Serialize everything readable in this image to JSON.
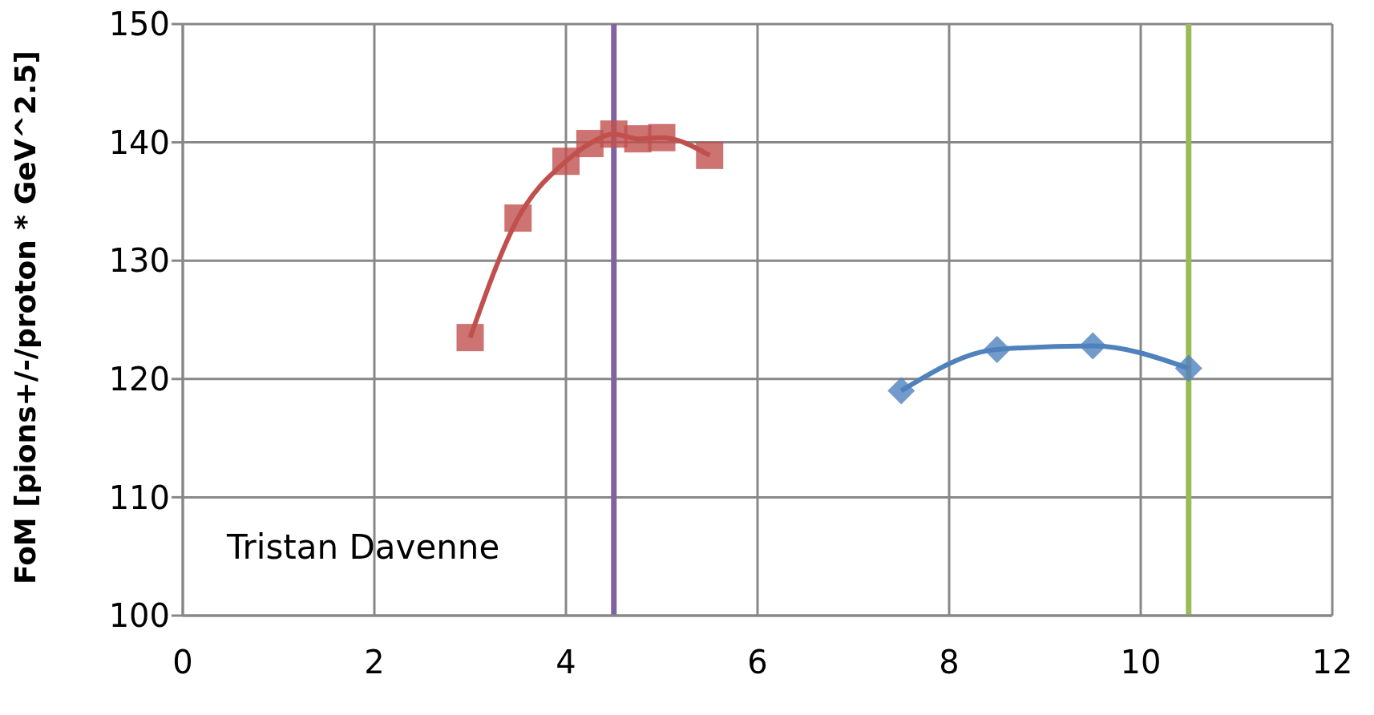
{
  "chart_data": {
    "type": "line",
    "ylabel": "FoM [pions+/-/proton  * GeV^2.5]",
    "xlim": [
      0,
      12
    ],
    "xticks": [
      0,
      2,
      4,
      6,
      8,
      10,
      12
    ],
    "ylim": [
      100,
      150
    ],
    "yticks": [
      100,
      110,
      120,
      130,
      140,
      150
    ],
    "grid": true,
    "legend": false,
    "marker": "square",
    "series": [
      {
        "color": "#c0504d",
        "x": [
          3,
          3.5,
          4,
          4.25,
          4.5,
          4.75,
          5,
          5.5
        ],
        "values": [
          123.5,
          133.6,
          138.4,
          139.9,
          140.7,
          140.3,
          140.4,
          138.9
        ]
      },
      {
        "color": "#4f81bd",
        "marker": "diamond",
        "x": [
          7.5,
          8.5,
          9.5,
          10.5
        ],
        "values": [
          119.0,
          122.5,
          122.8,
          120.9
        ]
      }
    ],
    "ref_lines": [
      {
        "axis": "x",
        "value": 4.5,
        "color": "#8064a2"
      },
      {
        "axis": "x",
        "value": 10.5,
        "color": "#9bbb59"
      }
    ],
    "annotations": [
      "Tristan Davenne"
    ]
  }
}
